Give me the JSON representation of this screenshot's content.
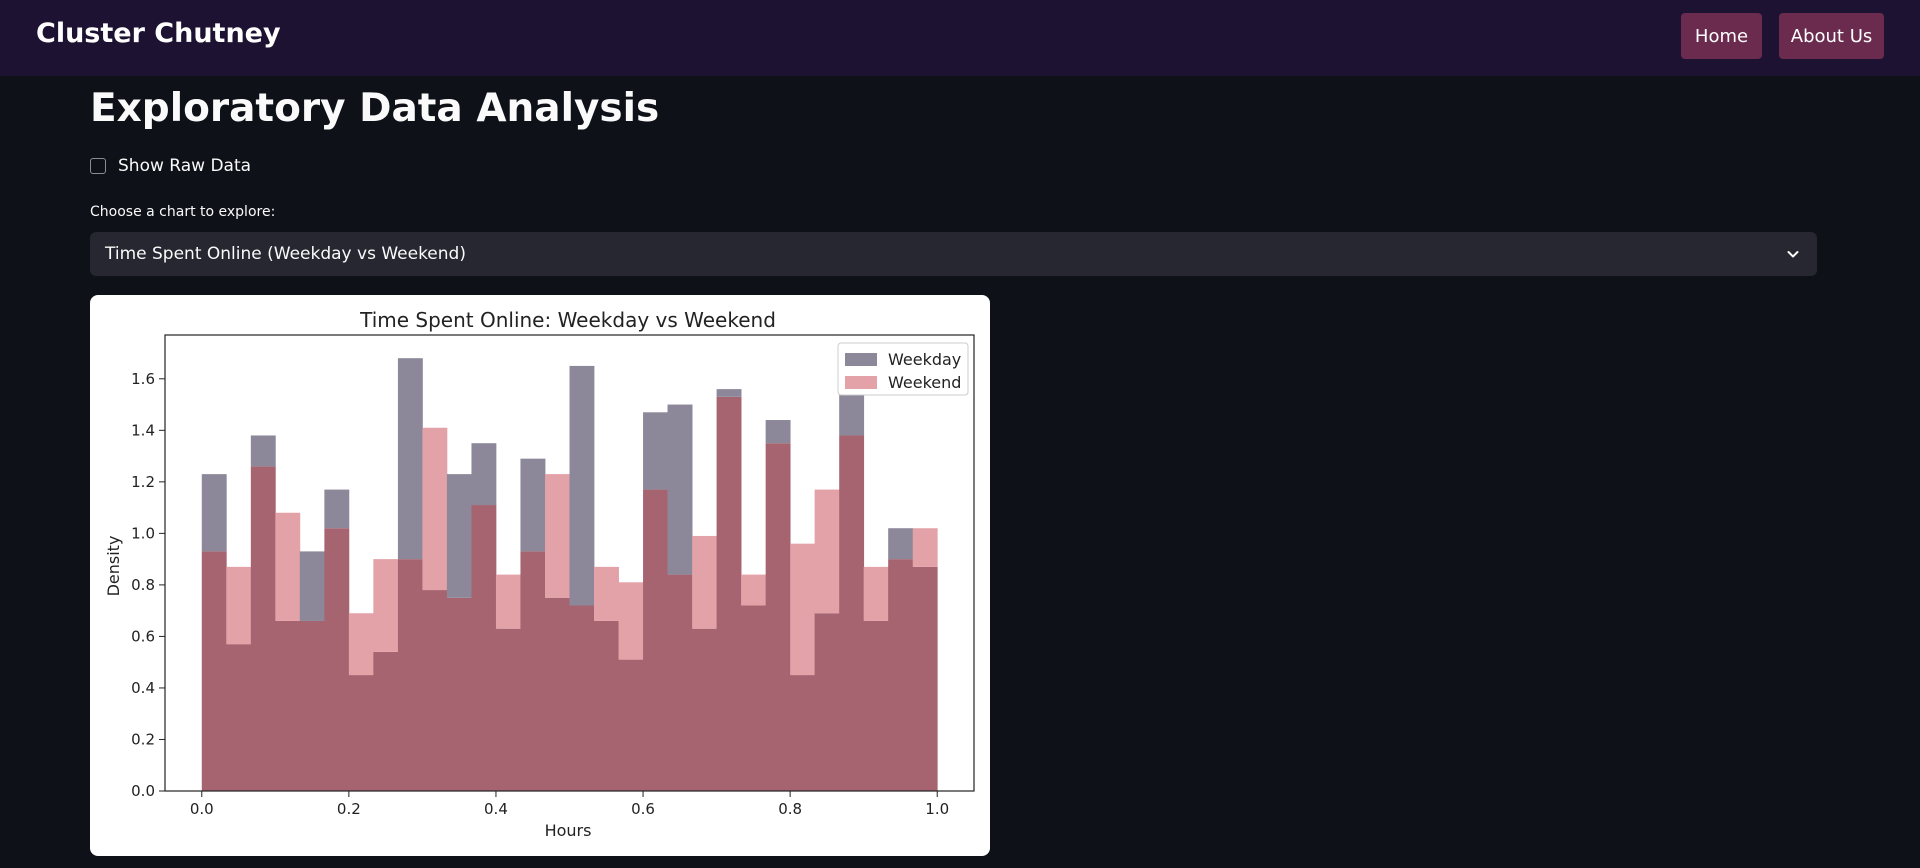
{
  "navbar": {
    "brand": "Cluster Chutney",
    "home_label": "Home",
    "about_label": "About Us"
  },
  "page": {
    "title": "Exploratory Data Analysis",
    "raw_data_checkbox_label": "Show Raw Data",
    "raw_data_checked": false,
    "select_label": "Choose a chart to explore:",
    "select_value": "Time Spent Online (Weekday vs Weekend)"
  },
  "colors": {
    "navbar_bg": "#1e1232",
    "button_bg": "#6b2b4e",
    "page_bg": "#0e1117",
    "weekday": "#8c8899",
    "weekend": "#e3a1a8",
    "overlap": "#a66470"
  },
  "chart_data": {
    "type": "bar",
    "title": "Time Spent Online: Weekday vs Weekend",
    "xlabel": "Hours",
    "ylabel": "Density",
    "xlim": [
      -0.05,
      1.05
    ],
    "ylim": [
      0,
      1.77
    ],
    "x_ticks": [
      0.0,
      0.2,
      0.4,
      0.6,
      0.8,
      1.0
    ],
    "x_tick_labels": [
      "0.0",
      "0.2",
      "0.4",
      "0.6",
      "0.8",
      "1.0"
    ],
    "y_ticks": [
      0.0,
      0.2,
      0.4,
      0.6,
      0.8,
      1.0,
      1.2,
      1.4,
      1.6
    ],
    "y_tick_labels": [
      "0.0",
      "0.2",
      "0.4",
      "0.6",
      "0.8",
      "1.0",
      "1.2",
      "1.4",
      "1.6"
    ],
    "bin_edges": [
      0.0,
      0.0333,
      0.0667,
      0.1,
      0.1333,
      0.1667,
      0.2,
      0.2333,
      0.2667,
      0.3,
      0.3333,
      0.3667,
      0.4,
      0.4333,
      0.4667,
      0.5,
      0.5333,
      0.5667,
      0.6,
      0.6333,
      0.6667,
      0.7,
      0.7333,
      0.7667,
      0.8,
      0.8333,
      0.8667,
      0.9,
      0.9333,
      0.9667,
      1.0
    ],
    "legend_position": "top-right",
    "series": [
      {
        "name": "Weekday",
        "values": [
          1.23,
          0.57,
          1.38,
          0.66,
          0.93,
          1.17,
          0.45,
          0.54,
          1.68,
          0.78,
          1.23,
          1.35,
          0.63,
          1.29,
          0.75,
          1.65,
          0.66,
          0.51,
          1.47,
          1.5,
          0.63,
          1.56,
          0.72,
          1.44,
          0.45,
          0.69,
          1.65,
          0.66,
          1.02,
          0.87
        ]
      },
      {
        "name": "Weekend",
        "values": [
          0.93,
          0.87,
          1.26,
          1.08,
          0.66,
          1.02,
          0.69,
          0.9,
          0.9,
          1.41,
          0.75,
          1.11,
          0.84,
          0.93,
          1.23,
          0.72,
          0.87,
          0.81,
          1.17,
          0.84,
          0.99,
          1.53,
          0.84,
          1.35,
          0.96,
          1.17,
          1.38,
          0.87,
          0.9,
          1.02
        ]
      }
    ]
  }
}
